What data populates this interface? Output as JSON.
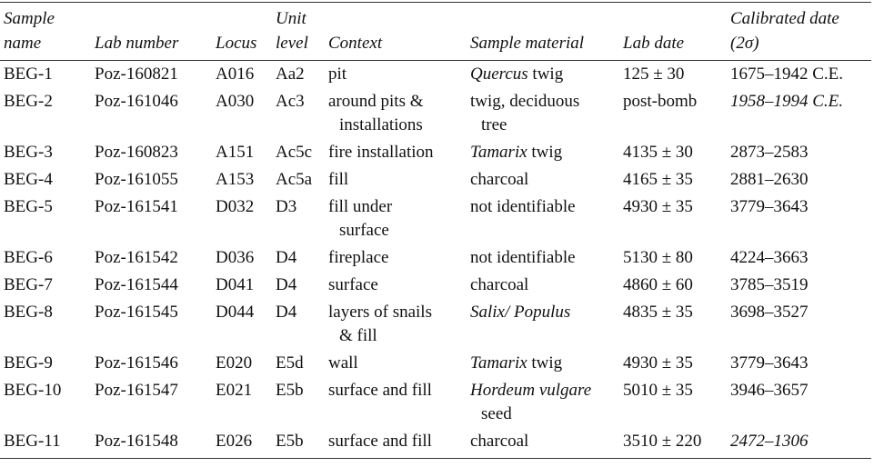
{
  "table": {
    "header": [
      [
        "Sample",
        "name"
      ],
      [
        "Lab number"
      ],
      [
        "Locus"
      ],
      [
        "Unit",
        "level"
      ],
      [
        "Context"
      ],
      [
        "Sample material"
      ],
      [
        "Lab date"
      ],
      [
        "Calibrated date",
        "(2σ)"
      ]
    ],
    "rows": [
      {
        "name": "BEG-1",
        "lab": "Poz-160821",
        "locus": "A016",
        "unit": "Aa2",
        "context": [
          "pit"
        ],
        "material": [
          [
            {
              "text": "Quercus",
              "italic": true
            },
            {
              "text": "twig"
            }
          ]
        ],
        "lab_date": "125 ± 30",
        "calibrated": "1675–1942 C.E."
      },
      {
        "name": "BEG-2",
        "lab": "Poz-161046",
        "locus": "A030",
        "unit": "Ac3",
        "context": [
          "around pits &",
          "installations"
        ],
        "material": [
          [
            {
              "text": "twig, deciduous"
            }
          ],
          [
            {
              "text": "tree"
            }
          ]
        ],
        "lab_date": "post-bomb",
        "calibrated": "1958–1994 C.E.",
        "calibrated_italic": true
      },
      {
        "name": "BEG-3",
        "lab": "Poz-160823",
        "locus": "A151",
        "unit": "Ac5c",
        "context": [
          "fire installation"
        ],
        "material": [
          [
            {
              "text": "Tamarix",
              "italic": true
            },
            {
              "text": "twig"
            }
          ]
        ],
        "lab_date": "4135 ± 30",
        "calibrated": "2873–2583"
      },
      {
        "name": "BEG-4",
        "lab": "Poz-161055",
        "locus": "A153",
        "unit": "Ac5a",
        "context": [
          "fill"
        ],
        "material": [
          [
            {
              "text": "charcoal"
            }
          ]
        ],
        "lab_date": "4165 ± 35",
        "calibrated": "2881–2630"
      },
      {
        "name": "BEG-5",
        "lab": "Poz-161541",
        "locus": "D032",
        "unit": "D3",
        "context": [
          "fill under",
          "surface"
        ],
        "material": [
          [
            {
              "text": "not identifiable"
            }
          ]
        ],
        "lab_date": "4930 ± 35",
        "calibrated": "3779–3643"
      },
      {
        "name": "BEG-6",
        "lab": "Poz-161542",
        "locus": "D036",
        "unit": "D4",
        "context": [
          "fireplace"
        ],
        "material": [
          [
            {
              "text": "not identifiable"
            }
          ]
        ],
        "lab_date": "5130 ± 80",
        "calibrated": "4224–3663"
      },
      {
        "name": "BEG-7",
        "lab": "Poz-161544",
        "locus": "D041",
        "unit": "D4",
        "context": [
          "surface"
        ],
        "material": [
          [
            {
              "text": "charcoal"
            }
          ]
        ],
        "lab_date": "4860 ± 60",
        "calibrated": "3785–3519"
      },
      {
        "name": "BEG-8",
        "lab": "Poz-161545",
        "locus": "D044",
        "unit": "D4",
        "context": [
          "layers of snails",
          "& fill"
        ],
        "material": [
          [
            {
              "text": "Salix/ Populus",
              "italic": true
            }
          ]
        ],
        "lab_date": "4835 ± 35",
        "calibrated": "3698–3527"
      },
      {
        "name": "BEG-9",
        "lab": "Poz-161546",
        "locus": "E020",
        "unit": "E5d",
        "context": [
          "wall"
        ],
        "material": [
          [
            {
              "text": "Tamarix",
              "italic": true
            },
            {
              "text": "twig"
            }
          ]
        ],
        "lab_date": "4930 ± 35",
        "calibrated": "3779–3643"
      },
      {
        "name": "BEG-10",
        "lab": "Poz-161547",
        "locus": "E021",
        "unit": "E5b",
        "context": [
          "surface and fill"
        ],
        "material": [
          [
            {
              "text": "Hordeum vulgare",
              "italic": true
            }
          ],
          [
            {
              "text": "seed"
            }
          ]
        ],
        "lab_date": "5010 ± 35",
        "calibrated": "3946–3657"
      },
      {
        "name": "BEG-11",
        "lab": "Poz-161548",
        "locus": "E026",
        "unit": "E5b",
        "context": [
          "surface and fill"
        ],
        "material": [
          [
            {
              "text": "charcoal"
            }
          ]
        ],
        "lab_date": "3510 ± 220",
        "calibrated": "2472–1306",
        "calibrated_italic": true
      }
    ]
  }
}
